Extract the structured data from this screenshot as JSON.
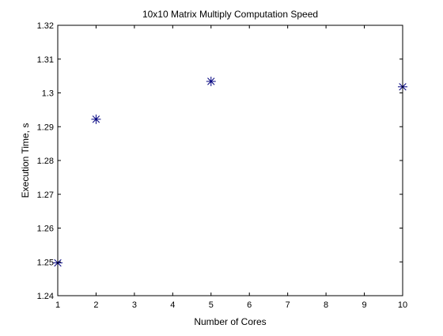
{
  "chart_data": {
    "type": "scatter",
    "title": "10x10 Matrix Multiply Computation Speed",
    "xlabel": "Number of Cores",
    "ylabel": "Execution Time, s",
    "xlim": [
      1,
      10
    ],
    "ylim": [
      1.24,
      1.32
    ],
    "x_ticks": [
      1,
      2,
      3,
      4,
      5,
      6,
      7,
      8,
      9,
      10
    ],
    "x_tick_labels": [
      "1",
      "2",
      "3",
      "4",
      "5",
      "6",
      "7",
      "8",
      "9",
      "10"
    ],
    "y_ticks": [
      1.24,
      1.25,
      1.26,
      1.27,
      1.28,
      1.29,
      1.3,
      1.31,
      1.32
    ],
    "y_tick_labels": [
      "1.24",
      "1.25",
      "1.26",
      "1.27",
      "1.28",
      "1.29",
      "1.3",
      "1.31",
      "1.32"
    ],
    "grid": false,
    "legend": "none",
    "marker": "asterisk",
    "marker_color": "#00007f",
    "series": [
      {
        "x": [
          1,
          2,
          5,
          10
        ],
        "y": [
          1.2497,
          1.2922,
          1.3034,
          1.3018
        ]
      }
    ]
  }
}
